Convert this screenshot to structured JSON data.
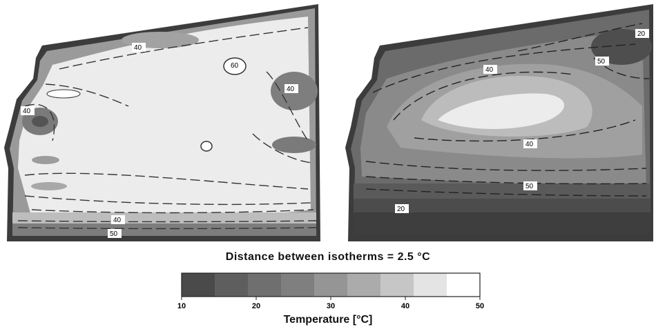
{
  "chart_data": {
    "type": "heatmap",
    "panels": [
      {
        "id": "left",
        "contour_labels": [
          "40",
          "60",
          "40",
          "40",
          "40",
          "50"
        ]
      },
      {
        "id": "right",
        "contour_labels": [
          "20",
          "50",
          "40",
          "40",
          "50",
          "20"
        ]
      }
    ],
    "colorbar": {
      "title": "Distance between isotherms = 2.5 °C",
      "xlabel": "Temperature [°C]",
      "tick_labels": [
        "10",
        "20",
        "30",
        "40",
        "50"
      ],
      "tick_values": [
        10,
        20,
        30,
        40,
        50
      ],
      "range": [
        10,
        50
      ],
      "colors": [
        "#4a4a4a",
        "#5e5e5e",
        "#6f6f6f",
        "#7f7f7f",
        "#959595",
        "#ababab",
        "#c6c6c6",
        "#e4e4e4",
        "#ffffff"
      ]
    },
    "isotherm_spacing_c": 2.5
  }
}
